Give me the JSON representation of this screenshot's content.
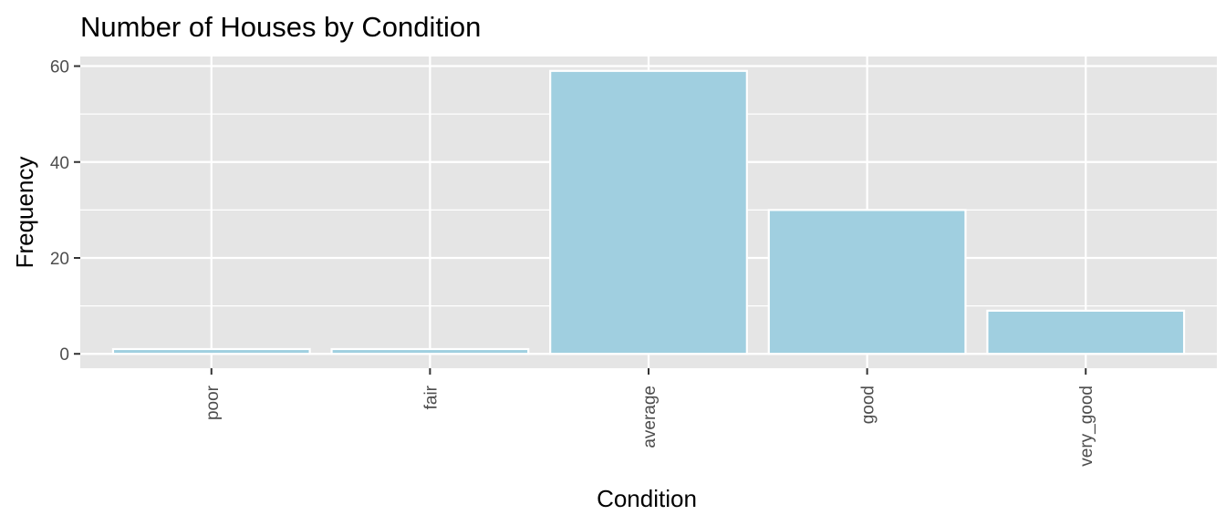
{
  "chart_data": {
    "type": "bar",
    "title": "Number of Houses by Condition",
    "xlabel": "Condition",
    "ylabel": "Frequency",
    "categories": [
      "poor",
      "fair",
      "average",
      "good",
      "very_good"
    ],
    "values": [
      1,
      1,
      59,
      30,
      9
    ],
    "ylim": [
      -3,
      62
    ],
    "yticks": [
      0,
      20,
      40,
      60
    ],
    "ytick_labels": [
      "0",
      "20",
      "40",
      "60"
    ],
    "grid": true,
    "legend": "none",
    "colors": {
      "panel_background": "#e5e5e5",
      "grid": "#ffffff",
      "bar_fill": "#a0cfe0",
      "bar_outline": "#ffffff",
      "tick_mark": "#333333"
    }
  }
}
